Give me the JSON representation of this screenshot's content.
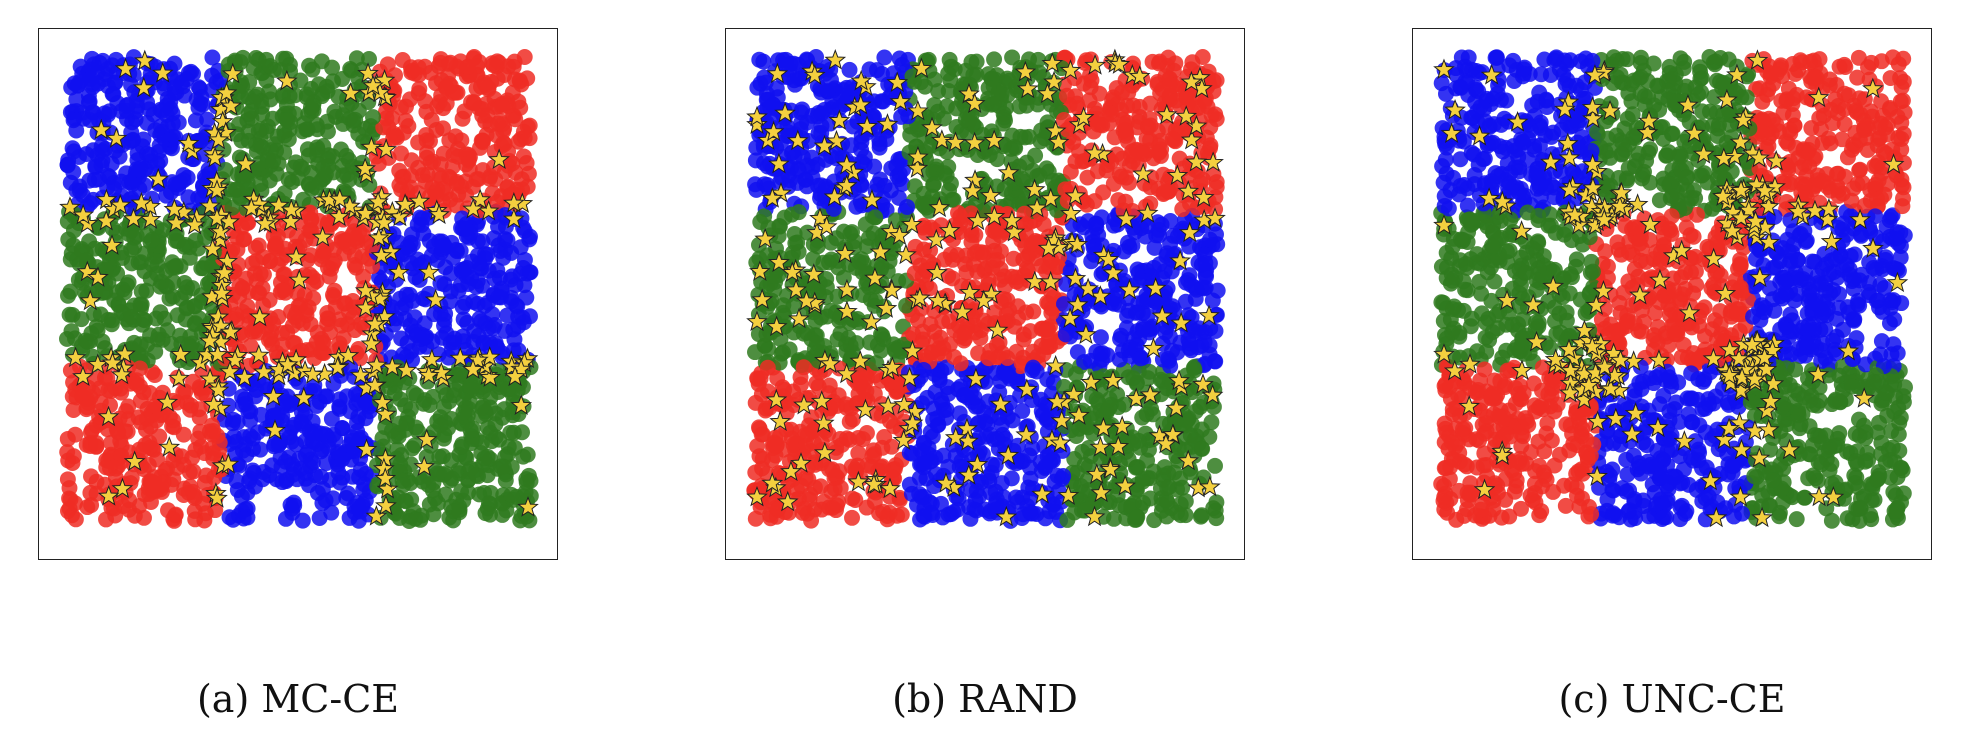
{
  "chart_data": [
    {
      "type": "scatter",
      "caption": "(a) MC-CE",
      "grid_layout": [
        [
          "blue",
          "green",
          "red"
        ],
        [
          "green",
          "red",
          "blue"
        ],
        [
          "red",
          "blue",
          "green"
        ]
      ],
      "colors": {
        "blue": "#1010f0",
        "green": "#2f7a1f",
        "red": "#ee2d24",
        "star": "#f4d03f",
        "star_edge": "#222222"
      },
      "xlim": [
        0,
        3
      ],
      "ylim": [
        0,
        3
      ],
      "selection_strategy": "boundary",
      "n_points": 2400,
      "n_stars": 240,
      "seed": 11
    },
    {
      "type": "scatter",
      "caption": "(b) RAND",
      "grid_layout": [
        [
          "blue",
          "green",
          "red"
        ],
        [
          "green",
          "red",
          "blue"
        ],
        [
          "red",
          "blue",
          "green"
        ]
      ],
      "colors": {
        "blue": "#1010f0",
        "green": "#2f7a1f",
        "red": "#ee2d24",
        "star": "#f4d03f",
        "star_edge": "#222222"
      },
      "xlim": [
        0,
        3
      ],
      "ylim": [
        0,
        3
      ],
      "selection_strategy": "random",
      "n_points": 2400,
      "n_stars": 240,
      "seed": 23
    },
    {
      "type": "scatter",
      "caption": "(c) UNC-CE",
      "grid_layout": [
        [
          "blue",
          "green",
          "red"
        ],
        [
          "green",
          "red",
          "blue"
        ],
        [
          "red",
          "blue",
          "green"
        ]
      ],
      "colors": {
        "blue": "#1010f0",
        "green": "#2f7a1f",
        "red": "#ee2d24",
        "star": "#f4d03f",
        "star_edge": "#222222"
      },
      "xlim": [
        0,
        3
      ],
      "ylim": [
        0,
        3
      ],
      "selection_strategy": "corners",
      "n_points": 2400,
      "n_stars": 240,
      "seed": 37
    }
  ]
}
